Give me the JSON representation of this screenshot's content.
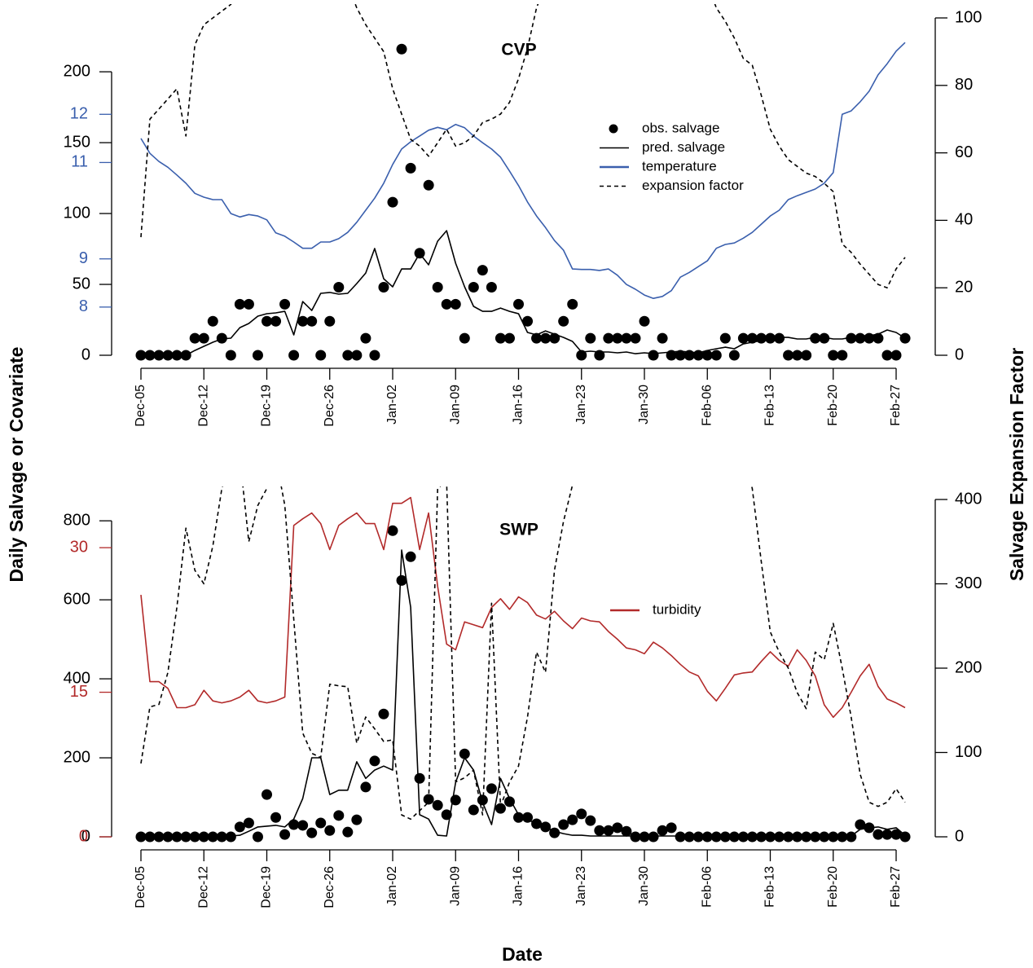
{
  "axis_titles": {
    "y": "Daily Salvage or Covariate",
    "y2": "Salvage Expansion Factor",
    "x": "Date"
  },
  "chart_data": [
    {
      "type": "line",
      "title": "CVP",
      "categories": [
        "Dec-05",
        null,
        null,
        null,
        null,
        null,
        null,
        "Dec-12",
        null,
        null,
        null,
        null,
        null,
        null,
        "Dec-19",
        null,
        null,
        null,
        null,
        null,
        null,
        "Dec-26",
        null,
        null,
        null,
        null,
        null,
        null,
        "Jan-02",
        null,
        null,
        null,
        null,
        null,
        null,
        "Jan-09",
        null,
        null,
        null,
        null,
        null,
        null,
        "Jan-16",
        null,
        null,
        null,
        null,
        null,
        null,
        "Jan-23",
        null,
        null,
        null,
        null,
        null,
        null,
        "Jan-30",
        null,
        null,
        null,
        null,
        null,
        null,
        "Feb-06",
        null,
        null,
        null,
        null,
        null,
        null,
        "Feb-13",
        null,
        null,
        null,
        null,
        null,
        null,
        "Feb-20",
        null,
        null,
        null,
        null,
        null,
        null,
        "Feb-27",
        null
      ],
      "ylim": [
        0,
        238
      ],
      "yticks": [
        0,
        50,
        100,
        150,
        200
      ],
      "y2lim": [
        0,
        100
      ],
      "y2ticks": [
        0,
        20,
        40,
        60,
        80,
        100
      ],
      "y3lim": [
        7,
        14
      ],
      "y3ticks": [
        8,
        9,
        11,
        12
      ],
      "y3color": "#3a5fad",
      "series": [
        {
          "name": "obs. salvage",
          "color": "#000000",
          "style": "points",
          "values": [
            0,
            0,
            0,
            0,
            0,
            0,
            12,
            12,
            24,
            12,
            0,
            36,
            36,
            0,
            24,
            24,
            36,
            0,
            24,
            24,
            0,
            24,
            48,
            0,
            0,
            12,
            0,
            48,
            108,
            216,
            132,
            72,
            120,
            48,
            36,
            36,
            12,
            48,
            60,
            48,
            12,
            12,
            36,
            24,
            12,
            12,
            12,
            24,
            36,
            0,
            12,
            0,
            12,
            12,
            12,
            12,
            24,
            0,
            12,
            0,
            0,
            0,
            0,
            0,
            0,
            12,
            0,
            12,
            12,
            12,
            12,
            12,
            0,
            0,
            0,
            12,
            12,
            0,
            0,
            12,
            12,
            12,
            12,
            0,
            0,
            12
          ]
        },
        {
          "name": "pred. salvage",
          "color": "#000000",
          "style": "line",
          "values": [
            0,
            0,
            0,
            0,
            0,
            0,
            3.4,
            6.3,
            9.2,
            11.5,
            12.1,
            19.5,
            22.4,
            27.6,
            29.3,
            29.9,
            31,
            14.4,
            37.9,
            31.6,
            43.7,
            44.3,
            43.1,
            43.7,
            50.6,
            58,
            75.3,
            54,
            48.3,
            60.9,
            60.9,
            71.8,
            63.8,
            80.5,
            87.9,
            64.9,
            48.3,
            34.5,
            31,
            31,
            33.3,
            31,
            29.3,
            16.1,
            14.4,
            17.2,
            14.9,
            12.6,
            9.8,
            2.3,
            2.9,
            2.3,
            2.3,
            1.7,
            2.3,
            1.1,
            1.7,
            1.1,
            1.7,
            2.3,
            2.9,
            2.3,
            1.7,
            3.4,
            4.6,
            5.7,
            4.6,
            8,
            9.2,
            10.3,
            12.6,
            12.6,
            12.6,
            11.5,
            11.5,
            12.6,
            12.6,
            11.5,
            11.5,
            12.6,
            13.8,
            13.8,
            14.9,
            17.8,
            16.1,
            12.1
          ]
        },
        {
          "name": "temperature",
          "color": "#3a5fad",
          "style": "line",
          "axis": "y3",
          "values": [
            11.5,
            11.19,
            11.02,
            10.9,
            10.74,
            10.57,
            10.36,
            10.28,
            10.23,
            10.23,
            9.94,
            9.87,
            9.92,
            9.89,
            9.81,
            9.54,
            9.47,
            9.35,
            9.22,
            9.22,
            9.35,
            9.35,
            9.42,
            9.55,
            9.76,
            10.01,
            10.26,
            10.57,
            10.96,
            11.28,
            11.43,
            11.55,
            11.67,
            11.73,
            11.68,
            11.79,
            11.72,
            11.55,
            11.41,
            11.28,
            11.11,
            10.82,
            10.52,
            10.18,
            9.89,
            9.65,
            9.38,
            9.18,
            8.79,
            8.78,
            8.78,
            8.76,
            8.79,
            8.66,
            8.47,
            8.37,
            8.25,
            8.18,
            8.22,
            8.34,
            8.62,
            8.72,
            8.84,
            8.96,
            9.22,
            9.3,
            9.33,
            9.43,
            9.55,
            9.72,
            9.89,
            10.01,
            10.23,
            10.31,
            10.38,
            10.45,
            10.57,
            10.79,
            12.0,
            12.07,
            12.26,
            12.48,
            12.82,
            13.05,
            13.31,
            13.49
          ]
        },
        {
          "name": "expansion factor",
          "color": "#000000",
          "style": "dashed",
          "axis": "y2",
          "values": [
            35,
            70,
            73,
            76,
            79,
            65,
            92,
            98,
            100,
            102,
            104,
            110,
            110,
            110,
            110,
            110,
            110,
            110,
            110,
            110,
            110,
            110,
            110,
            110,
            103,
            98,
            94,
            90,
            79,
            71.5,
            64,
            62,
            59,
            63,
            67,
            62,
            63,
            65,
            69,
            70,
            71.5,
            75,
            82,
            91,
            103,
            110,
            110,
            110,
            110,
            110,
            110,
            110,
            110,
            110,
            110,
            110,
            110,
            110,
            110,
            110,
            110,
            110,
            110,
            110,
            103,
            99,
            94,
            88,
            86,
            77,
            67,
            62,
            58,
            56,
            54,
            53,
            51,
            48.5,
            33,
            30.5,
            27,
            24,
            21,
            20,
            25.6,
            29
          ]
        }
      ]
    },
    {
      "type": "line",
      "title": "SWP",
      "categories": [
        "Dec-05",
        null,
        null,
        null,
        null,
        null,
        null,
        "Dec-12",
        null,
        null,
        null,
        null,
        null,
        null,
        "Dec-19",
        null,
        null,
        null,
        null,
        null,
        null,
        "Dec-26",
        null,
        null,
        null,
        null,
        null,
        null,
        "Jan-02",
        null,
        null,
        null,
        null,
        null,
        null,
        "Jan-09",
        null,
        null,
        null,
        null,
        null,
        null,
        "Jan-16",
        null,
        null,
        null,
        null,
        null,
        null,
        "Jan-23",
        null,
        null,
        null,
        null,
        null,
        null,
        "Jan-30",
        null,
        null,
        null,
        null,
        null,
        null,
        "Feb-06",
        null,
        null,
        null,
        null,
        null,
        null,
        "Feb-13",
        null,
        null,
        null,
        null,
        null,
        null,
        "Feb-20",
        null,
        null,
        null,
        null,
        null,
        null,
        "Feb-27",
        null
      ],
      "ylim": [
        0,
        854
      ],
      "yticks": [
        0,
        200,
        400,
        600,
        800
      ],
      "y2lim": [
        0,
        400
      ],
      "y2ticks": [
        0,
        100,
        200,
        300,
        400
      ],
      "y3lim": [
        0,
        35
      ],
      "y3ticks": [
        0,
        15,
        30
      ],
      "y3color": "#b22a2a",
      "series": [
        {
          "color": "#000000",
          "style": "points",
          "values": [
            0,
            0,
            0,
            0,
            0,
            0,
            0,
            0,
            0,
            0,
            0,
            25,
            35,
            0,
            107,
            49,
            6,
            31,
            29,
            10,
            35,
            16,
            54,
            12,
            43,
            126,
            192,
            311,
            775,
            649,
            709,
            148,
            95,
            80,
            56,
            93,
            210,
            68,
            93,
            122,
            72,
            89,
            49,
            49,
            33,
            25,
            10,
            31,
            43,
            58,
            41,
            16,
            16,
            23,
            14,
            0,
            0,
            0,
            16,
            23,
            0,
            0,
            0,
            0,
            0,
            0,
            0,
            0,
            0,
            0,
            0,
            0,
            0,
            0,
            0,
            0,
            0,
            0,
            0,
            0,
            31,
            23,
            6,
            6,
            6,
            0
          ]
        },
        {
          "color": "#000000",
          "style": "line",
          "values": [
            2,
            2,
            2,
            2,
            2,
            2,
            2,
            2,
            2,
            2,
            2,
            4,
            14,
            25,
            27,
            29,
            25,
            45,
            97,
            200,
            200,
            107,
            118,
            118,
            190,
            148,
            169,
            179,
            169,
            726,
            581,
            56,
            45,
            4,
            2,
            138,
            200,
            169,
            87,
            31,
            148,
            97,
            56,
            45,
            31,
            25,
            14,
            8,
            4,
            4,
            2,
            2,
            2,
            2,
            2,
            2,
            2,
            2,
            2,
            2,
            2,
            2,
            2,
            2,
            2,
            2,
            2,
            2,
            2,
            2,
            2,
            2,
            2,
            2,
            2,
            2,
            2,
            2,
            2,
            2,
            19,
            23,
            25,
            19,
            23,
            4
          ]
        },
        {
          "name": "turbidity",
          "color": "#b22a2a",
          "style": "line",
          "axis": "y3",
          "values": [
            25.1,
            16.1,
            16.1,
            15.4,
            13.4,
            13.4,
            13.7,
            15.2,
            14.1,
            13.9,
            14.1,
            14.5,
            15.2,
            14.1,
            13.9,
            14.1,
            14.5,
            32.3,
            33.0,
            33.6,
            32.5,
            29.8,
            32.3,
            33.0,
            33.6,
            32.5,
            32.5,
            29.8,
            34.6,
            34.6,
            35.2,
            29.8,
            33.6,
            26.0,
            20.0,
            19.4,
            22.3,
            22.0,
            21.7,
            23.8,
            24.7,
            23.6,
            24.9,
            24.3,
            23.0,
            22.6,
            23.4,
            22.4,
            21.6,
            22.7,
            22.4,
            22.3,
            21.3,
            20.5,
            19.6,
            19.4,
            19.0,
            20.2,
            19.6,
            18.8,
            17.9,
            17.1,
            16.7,
            15.1,
            14.1,
            15.4,
            16.8,
            17.0,
            17.1,
            18.2,
            19.2,
            18.3,
            17.7,
            19.4,
            18.3,
            16.7,
            13.7,
            12.4,
            13.4,
            15.0,
            16.7,
            17.9,
            15.6,
            14.3,
            13.9,
            13.4
          ]
        },
        {
          "color": "#000000",
          "style": "dashed",
          "axis": "y2",
          "values": [
            87,
            154,
            157,
            195,
            272,
            366,
            316,
            300,
            345,
            413,
            450,
            450,
            350,
            393,
            413,
            450,
            393,
            258,
            123,
            99,
            94,
            181,
            179,
            178,
            111,
            142,
            128,
            113,
            115,
            26,
            21,
            31,
            41,
            413,
            422,
            65,
            70,
            79,
            26,
            277,
            36,
            65,
            84,
            142,
            219,
            195,
            316,
            374,
            417,
            450,
            450,
            450,
            450,
            450,
            450,
            450,
            450,
            450,
            450,
            450,
            450,
            450,
            450,
            450,
            450,
            450,
            450,
            450,
            413,
            326,
            243,
            219,
            200,
            171,
            152,
            219,
            210,
            253,
            200,
            142,
            74,
            41,
            36,
            41,
            57,
            41
          ]
        }
      ]
    }
  ]
}
